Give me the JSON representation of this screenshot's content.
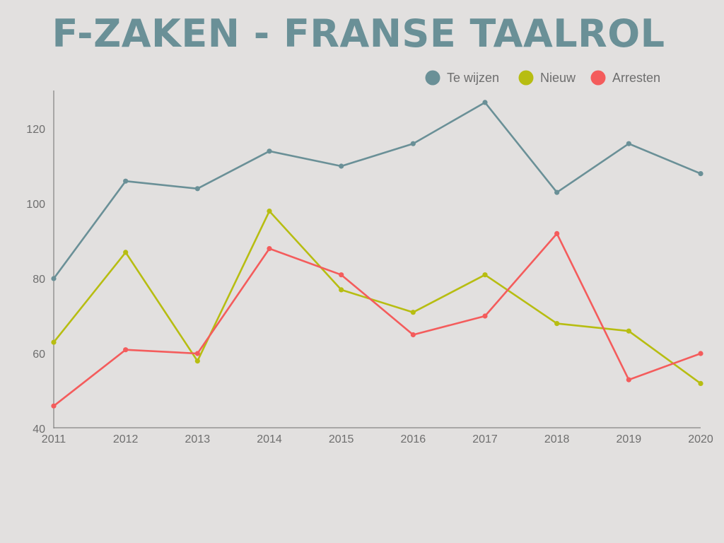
{
  "chart_data": {
    "type": "line",
    "title": "F-ZAKEN - FRANSE TAALROL",
    "xlabel": "",
    "ylabel": "",
    "categories": [
      "2011",
      "2012",
      "2013",
      "2014",
      "2015",
      "2016",
      "2017",
      "2018",
      "2019",
      "2020"
    ],
    "ylim": [
      40,
      130
    ],
    "yticks": [
      40,
      60,
      80,
      100,
      120
    ],
    "grid": false,
    "legend_position": "top-right",
    "series": [
      {
        "name": "Te wijzen",
        "color": "#6a9097",
        "values": [
          80,
          106,
          104,
          114,
          110,
          116,
          127,
          103,
          116,
          108
        ]
      },
      {
        "name": "Nieuw",
        "color": "#b7bd12",
        "values": [
          63,
          87,
          58,
          98,
          77,
          71,
          81,
          68,
          66,
          52
        ]
      },
      {
        "name": "Arresten",
        "color": "#f45c5c",
        "values": [
          46,
          61,
          60,
          88,
          81,
          65,
          70,
          92,
          53,
          60
        ]
      }
    ]
  }
}
